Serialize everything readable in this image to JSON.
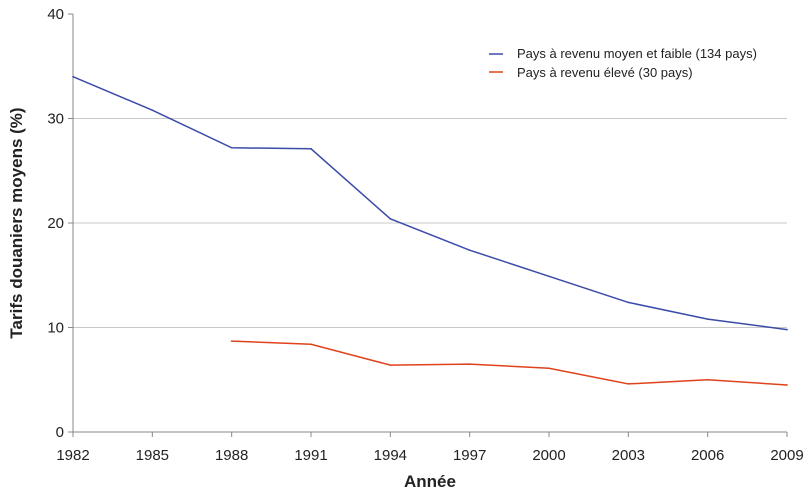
{
  "chart_data": {
    "type": "line",
    "title": "",
    "xlabel": "Année",
    "ylabel": "Tarifs douaniers moyens (%)",
    "xlim": [
      1982,
      2009
    ],
    "ylim": [
      0,
      40
    ],
    "x_ticks": [
      "1982",
      "1985",
      "1988",
      "1991",
      "1994",
      "1997",
      "2000",
      "2003",
      "2006",
      "2009"
    ],
    "y_ticks": [
      "0",
      "10",
      "20",
      "30",
      "40"
    ],
    "grid": "horizontal",
    "legend_position": "top-right",
    "series": [
      {
        "name": "Pays à revenu moyen et faible (134 pays)",
        "color": "#3b4ba8",
        "x": [
          1982,
          1985,
          1988,
          1991,
          1994,
          1997,
          2000,
          2003,
          2006,
          2009
        ],
        "y": [
          34.0,
          30.8,
          27.2,
          27.1,
          20.4,
          17.4,
          14.9,
          12.4,
          10.8,
          9.8
        ]
      },
      {
        "name": "Pays à revenu élevé (30 pays)",
        "color": "#e0421c",
        "x": [
          1988,
          1991,
          1994,
          1997,
          2000,
          2003,
          2006,
          2009
        ],
        "y": [
          8.7,
          8.4,
          6.4,
          6.5,
          6.1,
          4.6,
          5.0,
          4.5
        ]
      }
    ]
  }
}
